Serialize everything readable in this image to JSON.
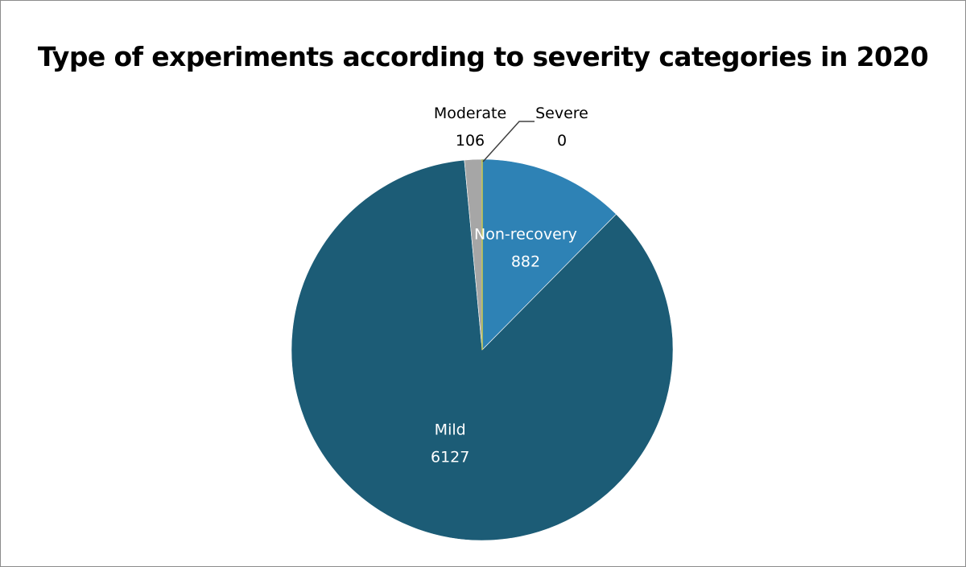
{
  "chart_data": {
    "type": "pie",
    "title": "Type of experiments according to severity categories in 2020",
    "slices": [
      {
        "name": "Non-recovery",
        "value": 882,
        "color": "#2e82b5",
        "label_color": "#ffffff"
      },
      {
        "name": "Mild",
        "value": 6127,
        "color": "#1c5c76",
        "label_color": "#ffffff"
      },
      {
        "name": "Moderate",
        "value": 106,
        "color": "#a6a6a6",
        "label_color": "#000000"
      },
      {
        "name": "Severe",
        "value": 0,
        "color": "#c9c94f",
        "label_color": "#000000"
      }
    ],
    "start_angle": "12 o'clock",
    "direction": "clockwise",
    "legend": "none"
  }
}
